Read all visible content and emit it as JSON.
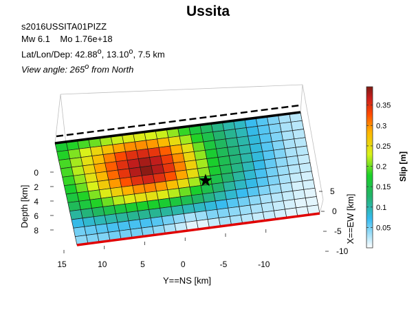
{
  "chart_data": {
    "type": "heatmap",
    "title": "Ussita",
    "header": {
      "event_id": "s2016USSITA01PIZZ",
      "magnitude_label": "Mw 6.1",
      "moment_label": "Mo 1.76e+18",
      "location_prefix": "Lat/Lon/Dep: ",
      "lat_value": "42.88",
      "lon_value": "13.10",
      "depth_value": "7.5 km",
      "degree_symbol": "o",
      "view_prefix": "View angle: ",
      "view_value": "265",
      "view_suffix": " from North"
    },
    "xlabel": "Y==NS [km]",
    "ylabel": "Depth [km]",
    "zlabel": "X==EW [km]",
    "ns_ticks": [
      15,
      10,
      5,
      0,
      -5,
      -10
    ],
    "ew_ticks": [
      5,
      0,
      -5,
      -10
    ],
    "depth_ticks": [
      0,
      2,
      4,
      6,
      8
    ],
    "colorbar": {
      "label": "Slip [m]",
      "range": [
        0,
        0.395
      ],
      "ticks": [
        0.05,
        0.1,
        0.15,
        0.2,
        0.25,
        0.3,
        0.35
      ]
    },
    "grid": true,
    "hypocenter": {
      "row": 6,
      "col": 12
    },
    "slip_grid_rows": 12,
    "slip_grid_cols": 22,
    "slip_m": [
      [
        0.17,
        0.18,
        0.19,
        0.2,
        0.215,
        0.225,
        0.235,
        0.235,
        0.23,
        0.225,
        0.21,
        0.185,
        0.16,
        0.135,
        0.115,
        0.1,
        0.09,
        0.07,
        0.06,
        0.045,
        0.03,
        0.025
      ],
      [
        0.18,
        0.205,
        0.23,
        0.255,
        0.275,
        0.29,
        0.3,
        0.3,
        0.295,
        0.28,
        0.25,
        0.215,
        0.18,
        0.15,
        0.125,
        0.11,
        0.095,
        0.075,
        0.06,
        0.045,
        0.03,
        0.025
      ],
      [
        0.19,
        0.215,
        0.245,
        0.275,
        0.305,
        0.33,
        0.35,
        0.355,
        0.345,
        0.32,
        0.285,
        0.245,
        0.2,
        0.16,
        0.135,
        0.115,
        0.1,
        0.08,
        0.06,
        0.045,
        0.03,
        0.025
      ],
      [
        0.19,
        0.22,
        0.255,
        0.29,
        0.32,
        0.35,
        0.37,
        0.38,
        0.37,
        0.34,
        0.3,
        0.255,
        0.21,
        0.17,
        0.14,
        0.12,
        0.1,
        0.08,
        0.06,
        0.045,
        0.03,
        0.025
      ],
      [
        0.185,
        0.21,
        0.245,
        0.28,
        0.315,
        0.345,
        0.375,
        0.39,
        0.375,
        0.345,
        0.305,
        0.26,
        0.215,
        0.175,
        0.145,
        0.12,
        0.1,
        0.08,
        0.06,
        0.045,
        0.03,
        0.025
      ],
      [
        0.175,
        0.2,
        0.23,
        0.265,
        0.295,
        0.325,
        0.35,
        0.36,
        0.35,
        0.325,
        0.29,
        0.25,
        0.21,
        0.17,
        0.14,
        0.115,
        0.095,
        0.075,
        0.055,
        0.04,
        0.03,
        0.02
      ],
      [
        0.16,
        0.18,
        0.205,
        0.235,
        0.26,
        0.285,
        0.3,
        0.305,
        0.295,
        0.275,
        0.25,
        0.215,
        0.18,
        0.15,
        0.125,
        0.105,
        0.085,
        0.065,
        0.05,
        0.035,
        0.025,
        0.02
      ],
      [
        0.14,
        0.16,
        0.18,
        0.2,
        0.22,
        0.235,
        0.245,
        0.245,
        0.235,
        0.22,
        0.2,
        0.175,
        0.15,
        0.125,
        0.105,
        0.09,
        0.075,
        0.06,
        0.045,
        0.03,
        0.02,
        0.015
      ],
      [
        0.105,
        0.12,
        0.135,
        0.15,
        0.16,
        0.17,
        0.175,
        0.175,
        0.17,
        0.16,
        0.145,
        0.13,
        0.115,
        0.1,
        0.085,
        0.07,
        0.06,
        0.045,
        0.035,
        0.025,
        0.015,
        0.015
      ],
      [
        0.075,
        0.085,
        0.095,
        0.1,
        0.105,
        0.11,
        0.11,
        0.11,
        0.105,
        0.1,
        0.095,
        0.09,
        0.08,
        0.07,
        0.06,
        0.05,
        0.04,
        0.03,
        0.025,
        0.02,
        0.015,
        0.01
      ],
      [
        0.05,
        0.055,
        0.06,
        0.065,
        0.065,
        0.065,
        0.065,
        0.06,
        0.05,
        0.04,
        0.03,
        0.035,
        0.045,
        0.045,
        0.04,
        0.035,
        0.03,
        0.025,
        0.02,
        0.015,
        0.01,
        0.01
      ],
      [
        0.04,
        0.045,
        0.045,
        0.05,
        0.05,
        0.05,
        0.045,
        0.04,
        0.03,
        0.02,
        0.01,
        0.01,
        0.02,
        0.03,
        0.03,
        0.025,
        0.02,
        0.02,
        0.015,
        0.01,
        0.01,
        0.01
      ]
    ]
  }
}
